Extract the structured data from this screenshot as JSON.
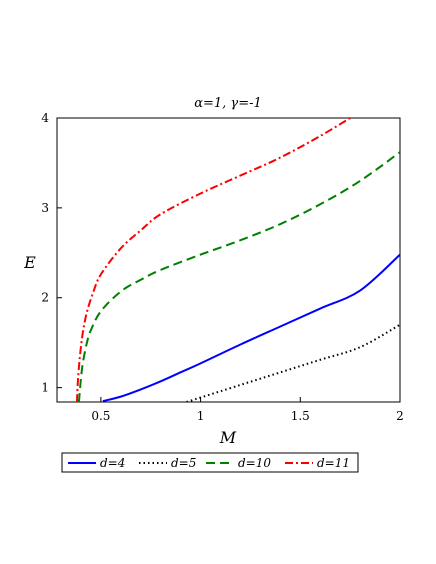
{
  "chart_data": {
    "type": "line",
    "title": "α=1, γ=-1",
    "xlabel": "M",
    "ylabel": "E",
    "xlim": [
      0.28,
      2.0
    ],
    "ylim": [
      0.84,
      4.0
    ],
    "xticks": [
      "0.5",
      "1",
      "1.5",
      "2"
    ],
    "yticks": [
      "1",
      "2",
      "3",
      "4"
    ],
    "grid": false,
    "legend_position": "bottom",
    "series": [
      {
        "name": "d=4",
        "color": "#0000ff",
        "style": "solid",
        "x": [
          0.51,
          0.6,
          0.7,
          0.8,
          0.9,
          1.0,
          1.2,
          1.4,
          1.6,
          1.8,
          2.0
        ],
        "y": [
          0.85,
          0.9,
          0.98,
          1.07,
          1.17,
          1.27,
          1.48,
          1.68,
          1.88,
          2.08,
          2.48
        ]
      },
      {
        "name": "d=5",
        "color": "#000000",
        "style": "dotted",
        "x": [
          0.93,
          1.0,
          1.2,
          1.4,
          1.6,
          1.8,
          2.0
        ],
        "y": [
          0.84,
          0.89,
          1.03,
          1.17,
          1.31,
          1.45,
          1.7
        ]
      },
      {
        "name": "d=10",
        "color": "#008000",
        "style": "dashed",
        "x": [
          0.39,
          0.4,
          0.41,
          0.43,
          0.45,
          0.5,
          0.6,
          0.7,
          0.8,
          1.0,
          1.2,
          1.4,
          1.6,
          1.8,
          2.0
        ],
        "y": [
          0.84,
          1.1,
          1.28,
          1.5,
          1.64,
          1.85,
          2.07,
          2.2,
          2.31,
          2.48,
          2.64,
          2.82,
          3.04,
          3.3,
          3.62
        ]
      },
      {
        "name": "d=11",
        "color": "#ff0000",
        "style": "dashdot",
        "x": [
          0.38,
          0.385,
          0.395,
          0.41,
          0.43,
          0.46,
          0.5,
          0.6,
          0.7,
          0.8,
          1.0,
          1.2,
          1.4,
          1.6,
          1.75
        ],
        "y": [
          0.84,
          1.08,
          1.35,
          1.62,
          1.84,
          2.05,
          2.26,
          2.55,
          2.75,
          2.93,
          3.16,
          3.36,
          3.56,
          3.8,
          4.0
        ]
      }
    ]
  }
}
